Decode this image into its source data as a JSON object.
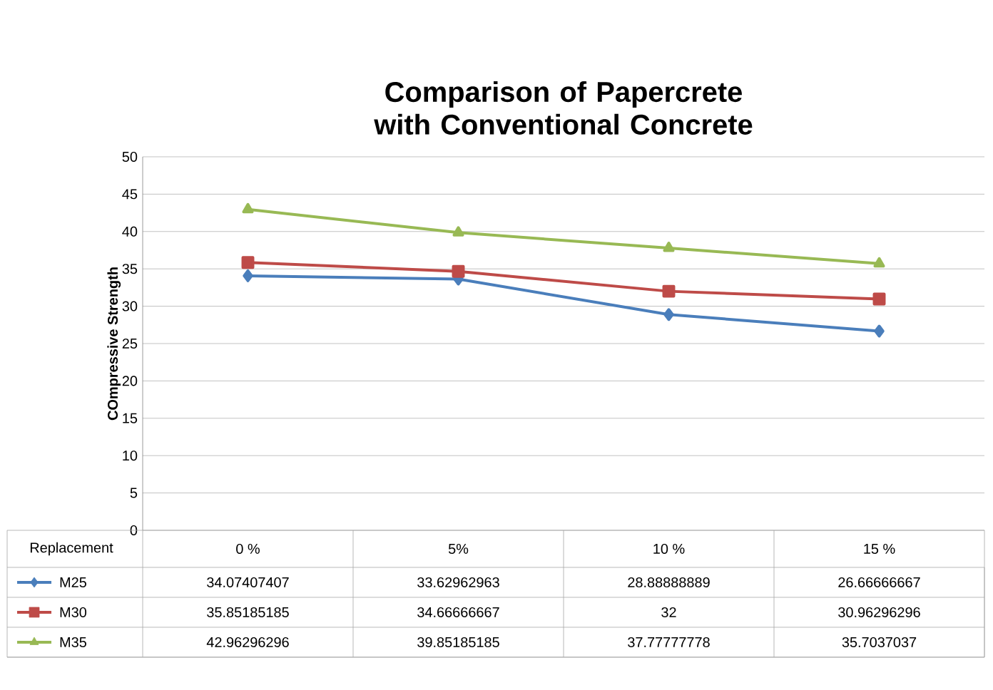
{
  "chart_data": {
    "type": "line",
    "title": "Comparison of Papercrete with Conventional Concrete",
    "xlabel": "Replacement",
    "ylabel": "COmpressive Strength",
    "categories": [
      "0 %",
      "5%",
      "10 %",
      "15  %"
    ],
    "series": [
      {
        "name": "M25",
        "color": "#4a7ebb",
        "marker": "diamond",
        "values": [
          34.07407407,
          33.62962963,
          28.88888889,
          26.66666667
        ]
      },
      {
        "name": "M30",
        "color": "#be4b48",
        "marker": "square",
        "values": [
          35.85185185,
          34.66666667,
          32,
          30.96296296
        ]
      },
      {
        "name": "M35",
        "color": "#98b954",
        "marker": "triangle",
        "values": [
          42.96296296,
          39.85185185,
          37.77777778,
          35.7037037
        ]
      }
    ],
    "ylim": [
      0,
      50
    ],
    "yticks": [
      0,
      5,
      10,
      15,
      20,
      25,
      30,
      35,
      40,
      45,
      50
    ],
    "grid": "y",
    "legend": "bottom",
    "data_labels": true
  }
}
